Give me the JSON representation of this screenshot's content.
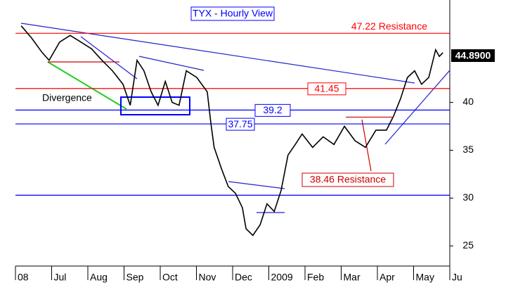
{
  "chart_data": {
    "type": "line",
    "title": "TYX - Hourly View",
    "x": [
      0.16,
      0.45,
      0.74,
      0.93,
      1.22,
      1.51,
      1.81,
      2.1,
      2.39,
      2.68,
      2.97,
      3.17,
      3.36,
      3.55,
      3.75,
      3.94,
      4.14,
      4.33,
      4.52,
      4.72,
      5.01,
      5.3,
      5.4,
      5.49,
      5.69,
      5.88,
      6.08,
      6.27,
      6.37,
      6.56,
      6.76,
      6.95,
      7.15,
      7.34,
      7.53,
      7.73,
      7.92,
      8.21,
      8.5,
      8.8,
      9.09,
      9.38,
      9.67,
      9.96,
      10.25,
      10.45,
      10.64,
      10.83,
      11.03,
      11.22,
      11.42,
      11.61,
      11.71,
      11.81
    ],
    "series": [
      {
        "name": "TYX",
        "color": "#000000",
        "values": [
          48.0,
          46.7,
          45.2,
          44.4,
          46.3,
          47.0,
          46.3,
          45.6,
          44.4,
          43.3,
          41.9,
          39.7,
          44.4,
          43.3,
          41.1,
          39.7,
          42.2,
          40.0,
          39.7,
          43.3,
          42.6,
          41.1,
          37.8,
          35.3,
          33.1,
          31.2,
          30.5,
          29.0,
          26.8,
          26.1,
          27.2,
          29.4,
          28.6,
          30.8,
          34.5,
          35.6,
          36.7,
          35.3,
          36.4,
          35.6,
          37.5,
          36.0,
          35.3,
          37.1,
          37.1,
          38.6,
          40.4,
          42.6,
          43.3,
          41.9,
          42.6,
          45.5,
          44.8,
          45.2
        ]
      }
    ],
    "xlim": [
      0,
      12
    ],
    "xticks": [
      {
        "value": 0,
        "label": "08"
      },
      {
        "value": 1,
        "label": "Jul"
      },
      {
        "value": 2,
        "label": "Aug"
      },
      {
        "value": 3,
        "label": "Sep"
      },
      {
        "value": 4,
        "label": "Oct"
      },
      {
        "value": 5,
        "label": "Nov"
      },
      {
        "value": 6,
        "label": "Dec"
      },
      {
        "value": 7,
        "label": "2009"
      },
      {
        "value": 8,
        "label": "Feb"
      },
      {
        "value": 9,
        "label": "Mar"
      },
      {
        "value": 10,
        "label": "Apr"
      },
      {
        "value": 11,
        "label": "May"
      },
      {
        "value": 12,
        "label": "Ju"
      }
    ],
    "ylim": [
      22.9,
      50.7
    ],
    "yticks": [
      25,
      30,
      35,
      40
    ],
    "last_price": {
      "value": 44.89,
      "label": "44.8900"
    },
    "levels": [
      {
        "value": 47.22,
        "label": "47.22 Resistance",
        "color": "#ff0000"
      },
      {
        "value": 41.45,
        "color": "#ff0000"
      },
      {
        "value": 39.2,
        "color": "#0000ff"
      },
      {
        "value": 37.75,
        "color": "#0000ff"
      },
      {
        "value": 30.3,
        "color": "#0000ff"
      }
    ],
    "resistance_note": {
      "value": 38.46,
      "label": "38.46 Resistance"
    },
    "divergence": "Divergence"
  }
}
